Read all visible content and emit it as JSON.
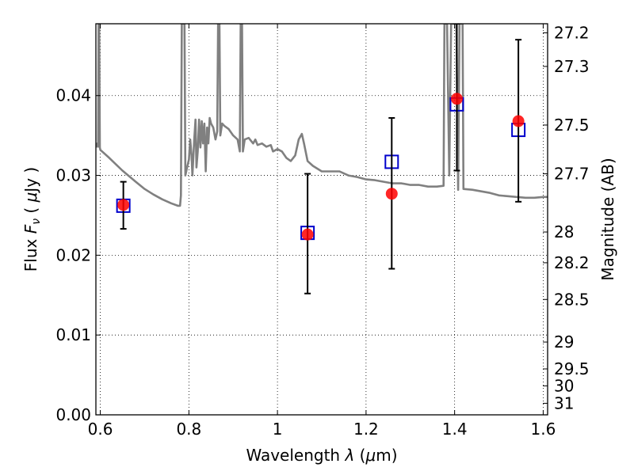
{
  "chart_data": {
    "type": "scatter",
    "title": "",
    "xlabel": "Wavelength  λ (μm)",
    "ylabel": "Flux  F_ν  ( μJy )",
    "ylabel_right": "Magnitude (AB)",
    "xlim": [
      0.59,
      1.61
    ],
    "ylim": [
      0.0,
      0.049
    ],
    "grid": true,
    "grid_style": "dotted",
    "x_ticks": [
      {
        "value": 0.6,
        "label": "0.6"
      },
      {
        "value": 0.8,
        "label": "0.8"
      },
      {
        "value": 1.0,
        "label": "1"
      },
      {
        "value": 1.2,
        "label": "1.2"
      },
      {
        "value": 1.4,
        "label": "1.4"
      },
      {
        "value": 1.6,
        "label": "1.6"
      }
    ],
    "y_ticks": [
      {
        "value": 0.0,
        "label": "0.00"
      },
      {
        "value": 0.01,
        "label": "0.01"
      },
      {
        "value": 0.02,
        "label": "0.02"
      },
      {
        "value": 0.03,
        "label": "0.03"
      },
      {
        "value": 0.04,
        "label": "0.04"
      }
    ],
    "right_ticks": [
      {
        "value": 27.2,
        "label": "27.2"
      },
      {
        "value": 27.3,
        "label": "27.3"
      },
      {
        "value": 27.5,
        "label": "27.5"
      },
      {
        "value": 27.7,
        "label": "27.7"
      },
      {
        "value": 28.0,
        "label": "28"
      },
      {
        "value": 28.2,
        "label": "28.2"
      },
      {
        "value": 28.5,
        "label": "28.5"
      },
      {
        "value": 29.0,
        "label": "29"
      },
      {
        "value": 29.5,
        "label": "29.5"
      },
      {
        "value": 30.0,
        "label": "30"
      },
      {
        "value": 31.0,
        "label": "31"
      }
    ],
    "right_axis_relation": "flux_uJy = 10^((23.9 - mag_AB)/2.5)",
    "series": [
      {
        "role": "model_spectrum",
        "style": "line",
        "color": "#808080",
        "points": [
          [
            0.59,
            0.0335
          ],
          [
            0.593,
            0.034
          ],
          [
            0.595,
            0.0336
          ],
          [
            0.596,
            0.049
          ],
          [
            0.5975,
            0.049
          ],
          [
            0.599,
            0.0335
          ],
          [
            0.6,
            0.0332
          ],
          [
            0.62,
            0.0322
          ],
          [
            0.65,
            0.0306
          ],
          [
            0.68,
            0.0292
          ],
          [
            0.7,
            0.0283
          ],
          [
            0.72,
            0.0276
          ],
          [
            0.74,
            0.027
          ],
          [
            0.76,
            0.0265
          ],
          [
            0.775,
            0.0262
          ],
          [
            0.78,
            0.0262
          ],
          [
            0.782,
            0.0275
          ],
          [
            0.784,
            0.049
          ],
          [
            0.79,
            0.049
          ],
          [
            0.792,
            0.03
          ],
          [
            0.796,
            0.031
          ],
          [
            0.8,
            0.032
          ],
          [
            0.803,
            0.0345
          ],
          [
            0.806,
            0.0325
          ],
          [
            0.808,
            0.03
          ],
          [
            0.812,
            0.0345
          ],
          [
            0.815,
            0.037
          ],
          [
            0.817,
            0.031
          ],
          [
            0.82,
            0.033
          ],
          [
            0.823,
            0.037
          ],
          [
            0.826,
            0.0335
          ],
          [
            0.829,
            0.0368
          ],
          [
            0.832,
            0.034
          ],
          [
            0.835,
            0.0365
          ],
          [
            0.838,
            0.0305
          ],
          [
            0.841,
            0.036
          ],
          [
            0.844,
            0.034
          ],
          [
            0.847,
            0.0372
          ],
          [
            0.85,
            0.0365
          ],
          [
            0.855,
            0.036
          ],
          [
            0.86,
            0.0345
          ],
          [
            0.864,
            0.0355
          ],
          [
            0.866,
            0.049
          ],
          [
            0.869,
            0.049
          ],
          [
            0.871,
            0.035
          ],
          [
            0.875,
            0.0365
          ],
          [
            0.88,
            0.0362
          ],
          [
            0.89,
            0.0358
          ],
          [
            0.9,
            0.035
          ],
          [
            0.91,
            0.0345
          ],
          [
            0.915,
            0.033
          ],
          [
            0.917,
            0.049
          ],
          [
            0.92,
            0.049
          ],
          [
            0.922,
            0.033
          ],
          [
            0.926,
            0.0345
          ],
          [
            0.935,
            0.0347
          ],
          [
            0.945,
            0.034
          ],
          [
            0.95,
            0.0345
          ],
          [
            0.955,
            0.0338
          ],
          [
            0.965,
            0.034
          ],
          [
            0.975,
            0.0336
          ],
          [
            0.985,
            0.0338
          ],
          [
            0.99,
            0.033
          ],
          [
            1.0,
            0.0333
          ],
          [
            1.01,
            0.033
          ],
          [
            1.02,
            0.0322
          ],
          [
            1.03,
            0.0318
          ],
          [
            1.04,
            0.0325
          ],
          [
            1.048,
            0.0345
          ],
          [
            1.055,
            0.0352
          ],
          [
            1.06,
            0.034
          ],
          [
            1.068,
            0.0318
          ],
          [
            1.08,
            0.0312
          ],
          [
            1.1,
            0.0305
          ],
          [
            1.12,
            0.0305
          ],
          [
            1.14,
            0.0305
          ],
          [
            1.16,
            0.03
          ],
          [
            1.18,
            0.0298
          ],
          [
            1.2,
            0.0295
          ],
          [
            1.22,
            0.0294
          ],
          [
            1.24,
            0.0292
          ],
          [
            1.26,
            0.029
          ],
          [
            1.28,
            0.029
          ],
          [
            1.3,
            0.0288
          ],
          [
            1.32,
            0.0288
          ],
          [
            1.34,
            0.0286
          ],
          [
            1.36,
            0.0286
          ],
          [
            1.375,
            0.0287
          ],
          [
            1.377,
            0.049
          ],
          [
            1.383,
            0.049
          ],
          [
            1.388,
            0.03
          ],
          [
            1.392,
            0.049
          ],
          [
            1.404,
            0.049
          ],
          [
            1.408,
            0.0282
          ],
          [
            1.411,
            0.049
          ],
          [
            1.418,
            0.049
          ],
          [
            1.42,
            0.0283
          ],
          [
            1.44,
            0.0282
          ],
          [
            1.46,
            0.028
          ],
          [
            1.48,
            0.0278
          ],
          [
            1.5,
            0.0275
          ],
          [
            1.52,
            0.0274
          ],
          [
            1.54,
            0.0273
          ],
          [
            1.56,
            0.0272
          ],
          [
            1.58,
            0.0272
          ],
          [
            1.6,
            0.0273
          ],
          [
            1.61,
            0.0273
          ]
        ]
      },
      {
        "role": "model_photometry",
        "style": "open-square",
        "color": "#0000cc",
        "points": [
          [
            0.652,
            0.0262
          ],
          [
            1.068,
            0.0228
          ],
          [
            1.258,
            0.0317
          ],
          [
            1.405,
            0.0389
          ],
          [
            1.544,
            0.0357
          ]
        ]
      },
      {
        "role": "observed_photometry",
        "style": "filled-circle-errorbar",
        "color": "#ff0000",
        "points": [
          {
            "x": 0.652,
            "y": 0.0263,
            "yerr_low": 0.003,
            "yerr_high": 0.0029
          },
          {
            "x": 1.068,
            "y": 0.0226,
            "yerr_low": 0.0074,
            "yerr_high": 0.0076
          },
          {
            "x": 1.258,
            "y": 0.0277,
            "yerr_low": 0.0094,
            "yerr_high": 0.0095
          },
          {
            "x": 1.405,
            "y": 0.0396,
            "yerr_low": 0.009,
            "yerr_high": 0.0094
          },
          {
            "x": 1.544,
            "y": 0.0368,
            "yerr_low": 0.0101,
            "yerr_high": 0.0102
          }
        ]
      }
    ]
  }
}
